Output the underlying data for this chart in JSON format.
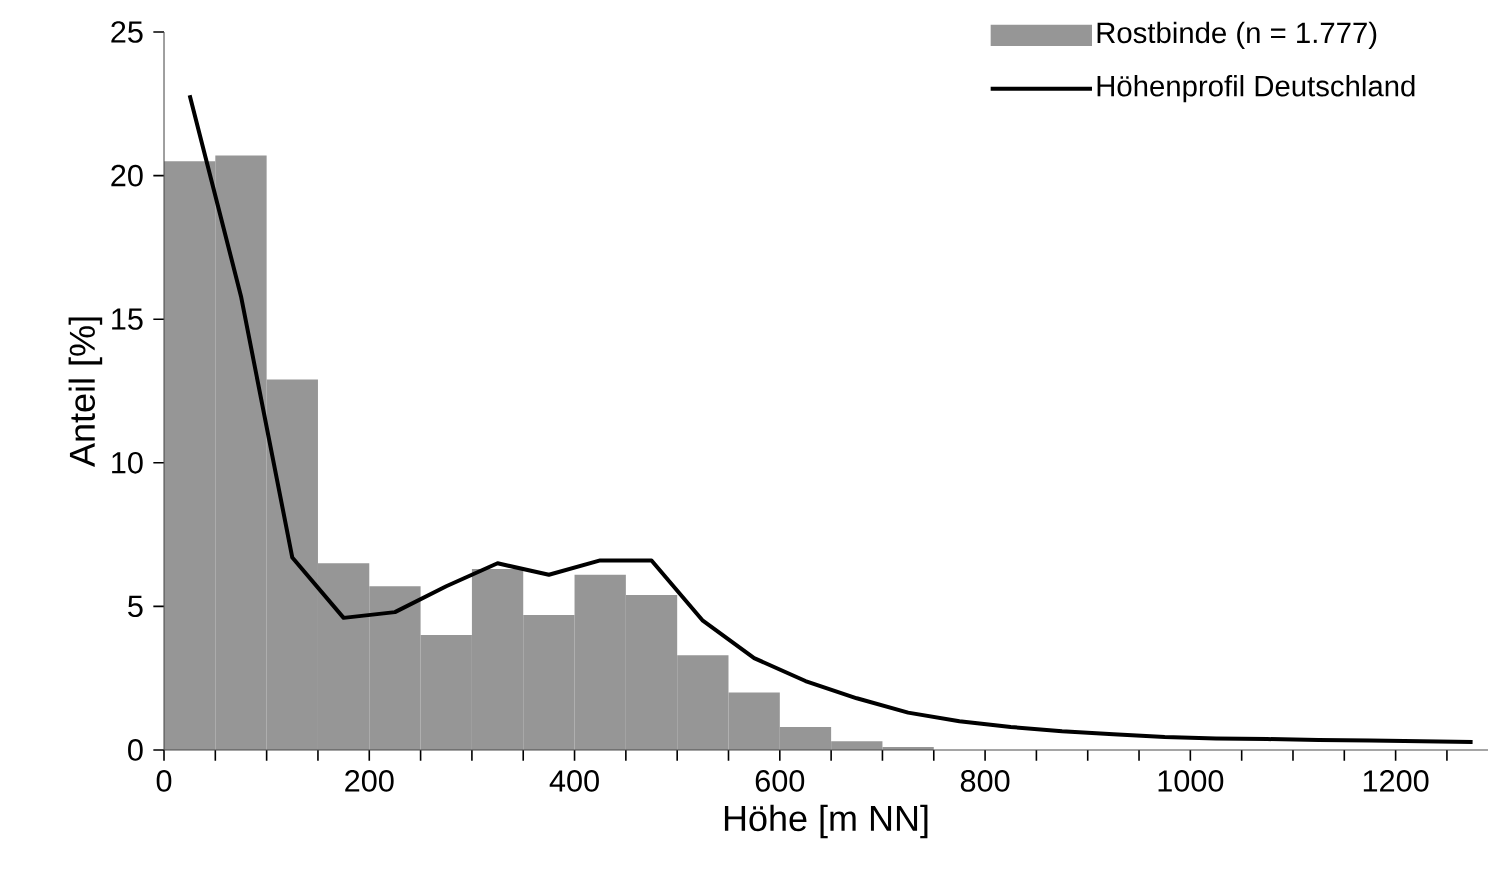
{
  "chart_data": {
    "type": "histogram",
    "xlabel": "Höhe [m NN]",
    "ylabel": "Anteil [%]",
    "bins": [
      0,
      50,
      100,
      150,
      200,
      250,
      300,
      350,
      400,
      450,
      500,
      550,
      600,
      650,
      700,
      750
    ],
    "series": [
      {
        "name": "Rostbinde (n = 1.777)",
        "color": "#969696",
        "values": [
          20.5,
          20.7,
          12.9,
          6.5,
          5.7,
          4.0,
          6.3,
          4.7,
          6.1,
          5.4,
          3.3,
          2.0,
          0.8,
          0.3,
          0.1
        ]
      },
      {
        "name": "Höhenprofil Deutschland",
        "type": "line",
        "color": "#000000",
        "x": [
          25,
          75,
          125,
          175,
          225,
          275,
          325,
          375,
          425,
          475,
          525,
          575,
          625,
          675,
          725,
          775,
          825,
          875,
          925,
          975,
          1025,
          1075,
          1125,
          1175,
          1225,
          1275
        ],
        "values": [
          22.8,
          15.8,
          6.7,
          4.6,
          4.8,
          5.7,
          6.5,
          6.1,
          6.6,
          6.6,
          4.5,
          3.2,
          2.4,
          1.8,
          1.3,
          1.0,
          0.8,
          0.65,
          0.55,
          0.45,
          0.4,
          0.38,
          0.35,
          0.33,
          0.3,
          0.28
        ]
      }
    ],
    "xlim": [
      0,
      1290
    ],
    "ylim": [
      0,
      25
    ],
    "xticks": [
      0,
      {
        "value": 50,
        "label": null
      },
      {
        "value": 100,
        "label": null
      },
      {
        "value": 150,
        "label": null
      },
      200,
      {
        "value": 250,
        "label": null
      },
      {
        "value": 300,
        "label": null
      },
      {
        "value": 350,
        "label": null
      },
      400,
      {
        "value": 450,
        "label": null
      },
      {
        "value": 500,
        "label": null
      },
      {
        "value": 550,
        "label": null
      },
      600,
      {
        "value": 650,
        "label": null
      },
      {
        "value": 700,
        "label": null
      },
      {
        "value": 750,
        "label": null
      },
      800,
      {
        "value": 850,
        "label": null
      },
      {
        "value": 900,
        "label": null
      },
      {
        "value": 950,
        "label": null
      },
      1000,
      {
        "value": 1050,
        "label": null
      },
      {
        "value": 1100,
        "label": null
      },
      {
        "value": 1150,
        "label": null
      },
      1200,
      {
        "value": 1250,
        "label": null
      }
    ],
    "yticks": [
      0,
      5,
      10,
      15,
      20,
      25
    ],
    "legend": "top right"
  }
}
